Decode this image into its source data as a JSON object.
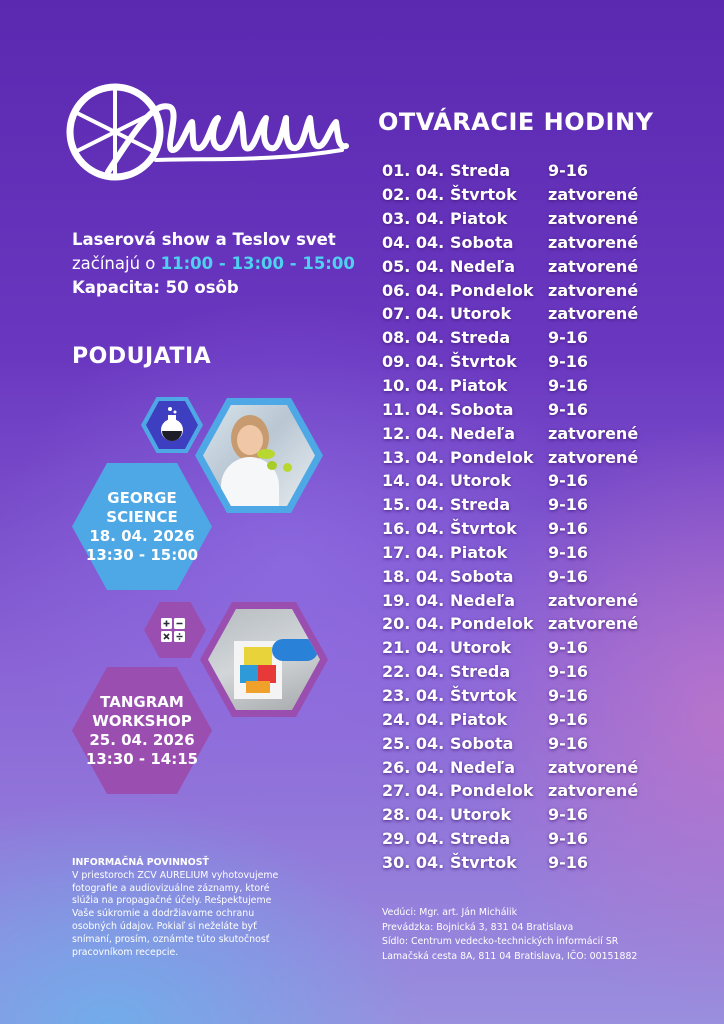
{
  "brand": {
    "logo_text": "Aurelium"
  },
  "show": {
    "line1": "Laserová show a Teslov svet",
    "line2_prefix": "začínajú o ",
    "times": "11:00 - 13:00 - 15:00",
    "capacity": "Kapacita: 50 osôb"
  },
  "events_heading": "PODUJATIA",
  "events": [
    {
      "title1": "GEORGE",
      "title2": "SCIENCE",
      "date": "18. 04. 2026",
      "time": "13:30 - 15:00",
      "icon": "flask-icon"
    },
    {
      "title1": "TANGRAM",
      "title2": "WORKSHOP",
      "date": "25. 04. 2026",
      "time": "13:30 - 14:15",
      "icon": "calculator-icon"
    }
  ],
  "hours_heading": "OTVÁRACIE HODINY",
  "hours": [
    {
      "date": "01. 04.",
      "day": "Streda",
      "hours": "9-16"
    },
    {
      "date": "02. 04.",
      "day": "Štvrtok",
      "hours": "zatvorené"
    },
    {
      "date": "03. 04.",
      "day": "Piatok",
      "hours": "zatvorené"
    },
    {
      "date": "04. 04.",
      "day": "Sobota",
      "hours": "zatvorené"
    },
    {
      "date": "05. 04.",
      "day": "Nedeľa",
      "hours": "zatvorené"
    },
    {
      "date": "06. 04.",
      "day": "Pondelok",
      "hours": "zatvorené"
    },
    {
      "date": "07. 04.",
      "day": "Utorok",
      "hours": "zatvorené"
    },
    {
      "date": "08. 04.",
      "day": "Streda",
      "hours": "9-16"
    },
    {
      "date": "09. 04.",
      "day": "Štvrtok",
      "hours": "9-16"
    },
    {
      "date": "10. 04.",
      "day": "Piatok",
      "hours": "9-16"
    },
    {
      "date": "11. 04.",
      "day": "Sobota",
      "hours": "9-16"
    },
    {
      "date": "12. 04.",
      "day": "Nedeľa",
      "hours": "zatvorené"
    },
    {
      "date": "13. 04.",
      "day": "Pondelok",
      "hours": "zatvorené"
    },
    {
      "date": "14. 04.",
      "day": "Utorok",
      "hours": "9-16"
    },
    {
      "date": "15. 04.",
      "day": "Streda",
      "hours": "9-16"
    },
    {
      "date": "16. 04.",
      "day": "Štvrtok",
      "hours": "9-16"
    },
    {
      "date": "17. 04.",
      "day": "Piatok",
      "hours": "9-16"
    },
    {
      "date": "18. 04.",
      "day": "Sobota",
      "hours": "9-16"
    },
    {
      "date": "19. 04.",
      "day": "Nedeľa",
      "hours": "zatvorené"
    },
    {
      "date": "20. 04.",
      "day": "Pondelok",
      "hours": "zatvorené"
    },
    {
      "date": "21. 04.",
      "day": "Utorok",
      "hours": "9-16"
    },
    {
      "date": "22. 04.",
      "day": "Streda",
      "hours": "9-16"
    },
    {
      "date": "23. 04.",
      "day": "Štvrtok",
      "hours": "9-16"
    },
    {
      "date": "24. 04.",
      "day": "Piatok",
      "hours": "9-16"
    },
    {
      "date": "25. 04.",
      "day": "Sobota",
      "hours": "9-16"
    },
    {
      "date": "26. 04.",
      "day": "Nedeľa",
      "hours": "zatvorené"
    },
    {
      "date": "27. 04.",
      "day": "Pondelok",
      "hours": "zatvorené"
    },
    {
      "date": "28. 04.",
      "day": "Utorok",
      "hours": "9-16"
    },
    {
      "date": "29. 04.",
      "day": "Streda",
      "hours": "9-16"
    },
    {
      "date": "30. 04.",
      "day": "Štvrtok",
      "hours": "9-16"
    }
  ],
  "info": {
    "title": "INFORMAČNÁ POVINNOSŤ",
    "lines": [
      "V priestoroch ZCV AURELIUM vyhotovujeme",
      "fotografie a audiovizuálne záznamy, ktoré",
      "slúžia na propagačné účely. Rešpektujeme",
      "Vaše súkromie a dodržiavame ochranu",
      "osobných údajov. Pokiaľ si neželáte byť",
      "snímaní, prosím, oznámte túto skutočnosť",
      "pracovníkom recepcie."
    ]
  },
  "footer": [
    "Vedúci: Mgr. art. Ján Michálik",
    "Prevádzka: Bojnická 3, 831 04 Bratislava",
    "Sídlo: Centrum vedecko-technických informácií SR",
    "Lamačská cesta 8A, 811 04 Bratislava, IČO: 00151882"
  ],
  "colors": {
    "accent_cyan": "#4fd0f0",
    "hex_blue": "#4ea8e6",
    "hex_purple": "#9a4fb0"
  }
}
